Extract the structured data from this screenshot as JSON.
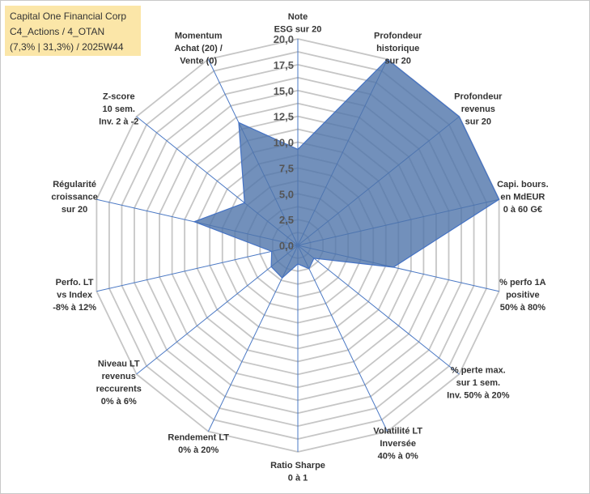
{
  "header": {
    "line1": "Capital One Financial Corp",
    "line2": "C4_Actions / 4_OTAN",
    "line3": "(7,3% | 31,3%) / 2025W44"
  },
  "chart_data": {
    "type": "radar",
    "rmax": 20,
    "ticks": [
      "0,0",
      "2,5",
      "5,0",
      "7,5",
      "10,0",
      "12,5",
      "15,0",
      "17,5",
      "20,0"
    ],
    "axes": [
      {
        "label": [
          "Note",
          "ESG sur 20"
        ],
        "value": 9.3
      },
      {
        "label": [
          "Profondeur",
          "historique",
          "sur 20"
        ],
        "value": 20
      },
      {
        "label": [
          "Profondeur",
          "revenus",
          "sur 20"
        ],
        "value": 20
      },
      {
        "label": [
          "Capi. bours.",
          "en MdEUR",
          "0 à 60 G€"
        ],
        "value": 20
      },
      {
        "label": [
          "% perfo 1A",
          "positive",
          "50% à 80%"
        ],
        "value": 9.5
      },
      {
        "label": [
          "% perte max.",
          "sur 1 sem.",
          "Inv. 50% à 20%"
        ],
        "value": 2.0
      },
      {
        "label": [
          "Volatilité LT",
          "Inversée",
          "40% à 0%"
        ],
        "value": 2.5
      },
      {
        "label": [
          "Ratio Sharpe",
          "0 à 1"
        ],
        "value": 1.8
      },
      {
        "label": [
          "Rendement LT",
          "0% à 20%"
        ],
        "value": 3.5
      },
      {
        "label": [
          "Niveau LT",
          "revenus",
          "reccurents",
          "0% à 6%"
        ],
        "value": 3.3
      },
      {
        "label": [
          "Perfo. LT",
          "vs Index",
          "-8% à 12%"
        ],
        "value": 2.6
      },
      {
        "label": [
          "Régularité",
          "croissance",
          "sur 20"
        ],
        "value": 10.3
      },
      {
        "label": [
          "Z-score",
          "10 sem.",
          "Inv. 2 à -2"
        ],
        "value": 6.6
      },
      {
        "label": [
          "Momentum",
          "Achat (20) /",
          "Vente (0)"
        ],
        "value": 13.2
      }
    ]
  }
}
